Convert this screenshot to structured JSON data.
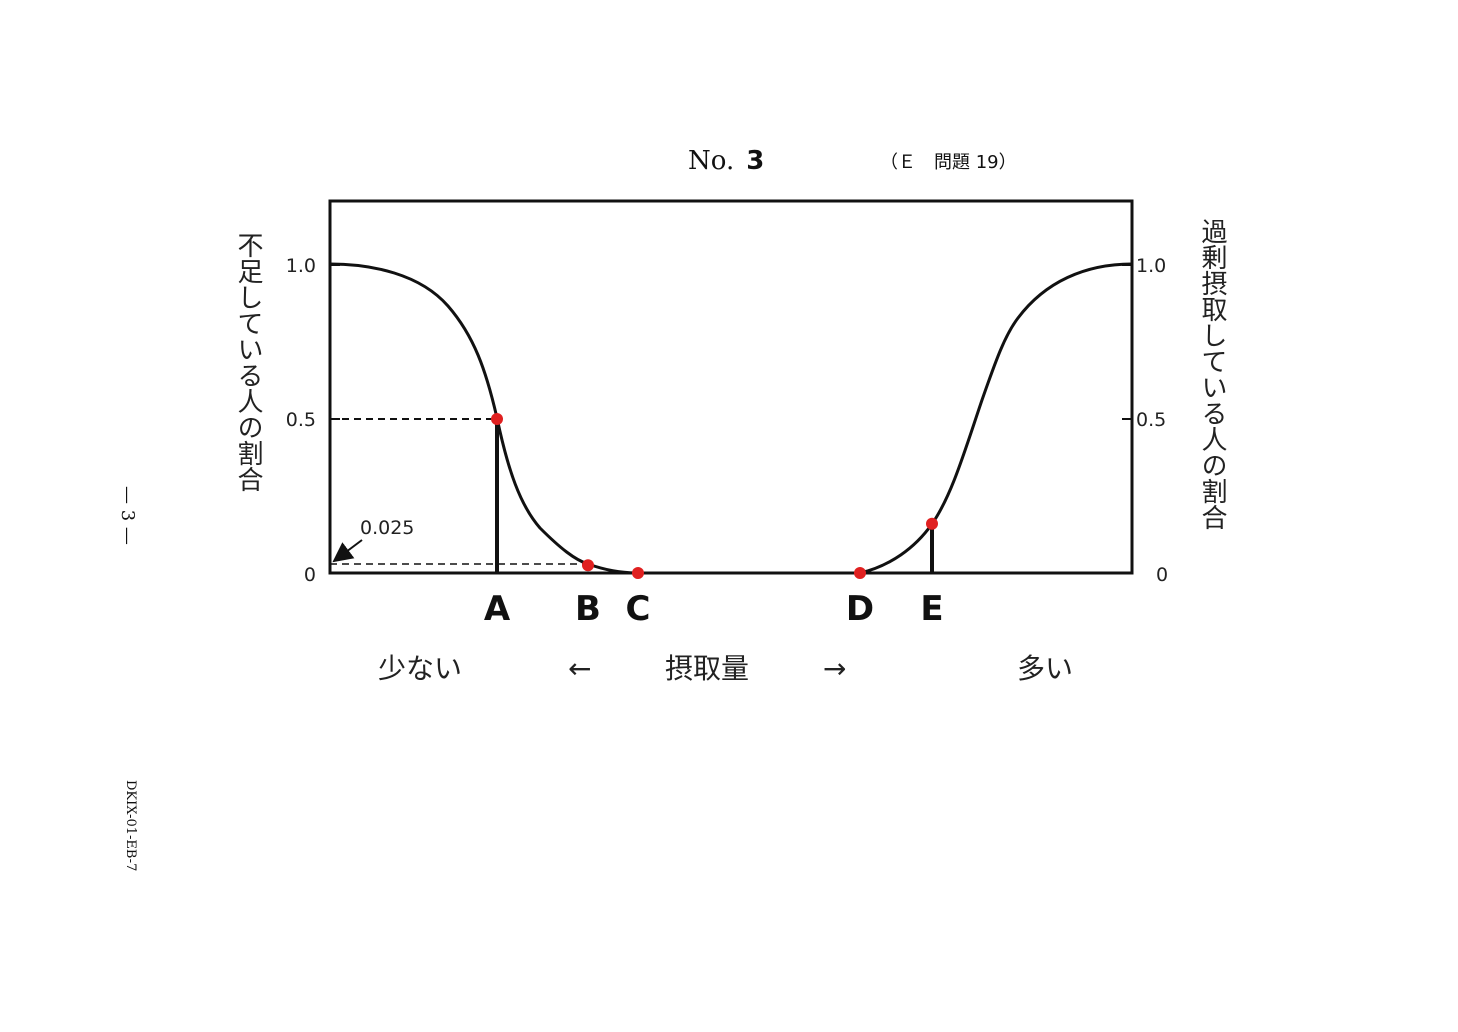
{
  "header": {
    "no_prefix": "No.",
    "no_number": "3",
    "ref": "（Ｅ　問題 19）"
  },
  "side": {
    "page_marker": "— 3 —",
    "doc_code": "DKIX-01-EB-7"
  },
  "chart_data": {
    "type": "line",
    "ylabel_left": "不足している人の割合",
    "ylabel_right": "過剰摂取している人の割合",
    "yticks_left": [
      "1.0",
      "0.5",
      "0"
    ],
    "yticks_right": [
      "1.0",
      "0.5",
      "0"
    ],
    "ylim": [
      0,
      1.0
    ],
    "xlabel": "摂取量",
    "x_left_word": "少ない",
    "x_right_word": "多い",
    "x_left_arrow": "←",
    "x_right_arrow": "→",
    "annotation": "0.025",
    "points": [
      {
        "label": "A",
        "y": 0.5
      },
      {
        "label": "B",
        "y": 0.025
      },
      {
        "label": "C",
        "y": 0
      },
      {
        "label": "D",
        "y": 0
      },
      {
        "label": "E",
        "y": 0.16
      }
    ],
    "series": [
      {
        "values": [
          1.0,
          0.98,
          0.9,
          0.75,
          0.5,
          0.2,
          0.07,
          0.025,
          0.0
        ]
      },
      {
        "values": [
          0.0,
          0.03,
          0.16,
          0.45,
          0.75,
          0.92,
          0.99,
          1.0
        ]
      }
    ]
  }
}
